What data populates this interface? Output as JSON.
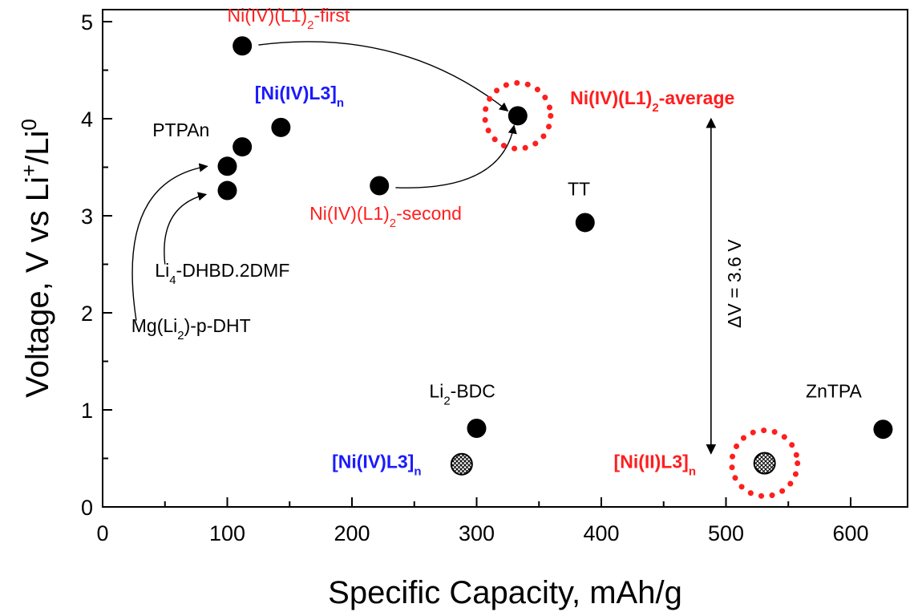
{
  "chart_data": {
    "type": "scatter",
    "title": "",
    "xlabel": "Specific Capacity, mAh/g",
    "ylabel_parts": [
      "Voltage, V vs Li",
      "+",
      "/Li",
      "0"
    ],
    "xlim": [
      0,
      650
    ],
    "ylim": [
      0,
      5.2
    ],
    "x_ticks": [
      0,
      100,
      200,
      300,
      400,
      500,
      600
    ],
    "y_ticks": [
      0,
      1,
      2,
      3,
      4,
      5
    ],
    "grid": false,
    "colors": {
      "black": "#000000",
      "red": "#ff1e1e",
      "blue": "#1a1aff"
    },
    "points": [
      {
        "name": "ni-iv-l1-2-first",
        "x": 112,
        "y": 4.75,
        "marker": "filled"
      },
      {
        "name": "ni-iv-l3-n-high",
        "x": 143,
        "y": 3.91,
        "marker": "filled"
      },
      {
        "name": "ptpan",
        "x": 112,
        "y": 3.71,
        "marker": "filled"
      },
      {
        "name": "mg-li2-p-dht",
        "x": 100,
        "y": 3.51,
        "marker": "filled"
      },
      {
        "name": "li4-dhbd-2dmf",
        "x": 100,
        "y": 3.26,
        "marker": "filled"
      },
      {
        "name": "ni-iv-l1-2-average",
        "x": 333,
        "y": 4.03,
        "marker": "filled",
        "highlight": true
      },
      {
        "name": "ni-iv-l1-2-second",
        "x": 222,
        "y": 3.31,
        "marker": "filled"
      },
      {
        "name": "tt",
        "x": 387,
        "y": 2.93,
        "marker": "filled"
      },
      {
        "name": "li2-bdc",
        "x": 300,
        "y": 0.81,
        "marker": "filled"
      },
      {
        "name": "ni-iv-l3-n-low",
        "x": 288,
        "y": 0.44,
        "marker": "hatched"
      },
      {
        "name": "ni-ii-l3-n",
        "x": 531,
        "y": 0.45,
        "marker": "hatched",
        "highlight": true
      },
      {
        "name": "zntpa",
        "x": 626,
        "y": 0.8,
        "marker": "filled"
      }
    ],
    "annotations": [
      {
        "name": "label-ni-iv-l1-2-first",
        "parts": [
          "Ni(IV)(L1)",
          "2",
          "-first"
        ],
        "x": 100,
        "y": 5.0,
        "color": "red",
        "bold": false
      },
      {
        "name": "label-ni-iv-l3-n-high",
        "parts": [
          "[Ni(IV)L3]",
          "n",
          ""
        ],
        "x": 122,
        "y": 4.2,
        "color": "blue",
        "bold": true
      },
      {
        "name": "label-ptpan",
        "parts": [
          "PTPAn",
          "",
          ""
        ],
        "x": 40,
        "y": 3.82,
        "color": "black",
        "bold": false
      },
      {
        "name": "label-ni-iv-l1-2-average",
        "parts": [
          "Ni(IV)(L1)",
          "2",
          "-average"
        ],
        "x": 375,
        "y": 4.15,
        "color": "red",
        "bold": true
      },
      {
        "name": "label-ni-iv-l1-2-second",
        "parts": [
          "Ni(IV)(L1)",
          "2",
          "-second"
        ],
        "x": 166,
        "y": 2.96,
        "color": "red",
        "bold": false
      },
      {
        "name": "label-tt",
        "parts": [
          "TT",
          "",
          ""
        ],
        "x": 373,
        "y": 3.21,
        "color": "black",
        "bold": false
      },
      {
        "name": "label-li4-dhbd-2dmf",
        "parts": [
          "Li",
          "4",
          "-DHBD.2DMF"
        ],
        "x": 42,
        "y": 2.37,
        "color": "black",
        "bold": false
      },
      {
        "name": "label-mg-li2-p-dht",
        "parts": [
          "Mg(Li",
          "2",
          ")-p-DHT"
        ],
        "x": 23,
        "y": 1.8,
        "color": "black",
        "bold": false
      },
      {
        "name": "label-delta-v",
        "parts": [
          "ΔV = 3.6 V",
          "",
          ""
        ],
        "x": 512,
        "y": 2.3,
        "color": "black",
        "bold": false,
        "rotate": true
      },
      {
        "name": "label-li2-bdc",
        "parts": [
          "Li",
          "2",
          "-BDC"
        ],
        "x": 262,
        "y": 1.13,
        "color": "black",
        "bold": false
      },
      {
        "name": "label-zntpa",
        "parts": [
          "ZnTPA",
          "",
          ""
        ],
        "x": 564,
        "y": 1.13,
        "color": "black",
        "bold": false
      },
      {
        "name": "label-ni-iv-l3-n-low",
        "parts": [
          "[Ni(IV)L3]",
          "n",
          ""
        ],
        "x": 184,
        "y": 0.4,
        "color": "blue",
        "bold": true
      },
      {
        "name": "label-ni-ii-l3-n",
        "parts": [
          "[Ni(II)L3]",
          "n",
          ""
        ],
        "x": 410,
        "y": 0.4,
        "color": "red",
        "bold": true
      }
    ],
    "arrows": [
      {
        "name": "arrow-first-to-average",
        "from": [
          125,
          4.76
        ],
        "to": [
          325,
          4.08
        ],
        "ctrl": [
          240,
          4.95
        ]
      },
      {
        "name": "arrow-second-to-average",
        "from": [
          235,
          3.29
        ],
        "to": [
          330,
          3.93
        ],
        "ctrl": [
          320,
          3.25
        ]
      },
      {
        "name": "arrow-mg-to-upper",
        "from": [
          27,
          1.92
        ],
        "to": [
          84,
          3.51
        ],
        "ctrl": [
          10,
          3.35
        ]
      },
      {
        "name": "arrow-li4-to-lower",
        "from": [
          50,
          2.5
        ],
        "to": [
          83,
          3.22
        ],
        "ctrl": [
          45,
          3.1
        ]
      }
    ],
    "delta_v_arrow": {
      "x": 488,
      "y_top": 4.0,
      "y_bottom": 0.55
    }
  }
}
